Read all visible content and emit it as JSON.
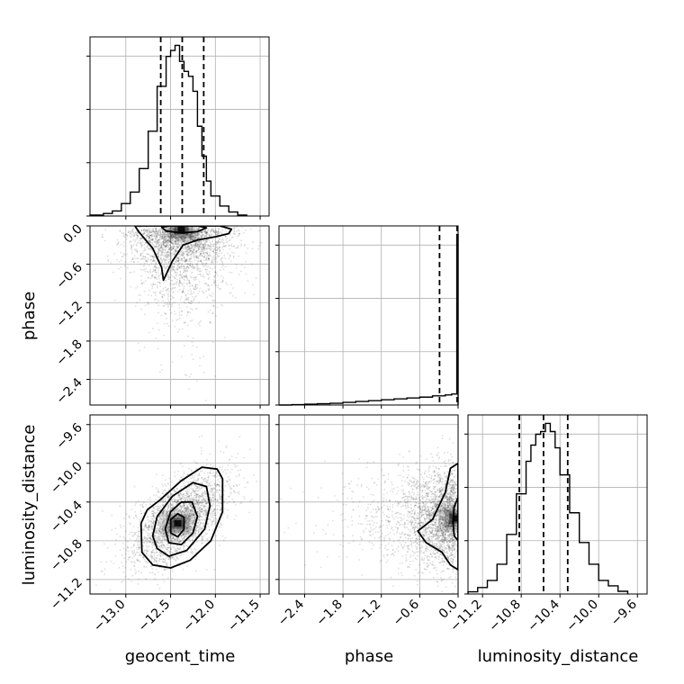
{
  "chart_data": {
    "type": "corner",
    "parameters": [
      "geocent_time",
      "phase",
      "luminosity_distance"
    ],
    "colors": {
      "line": "#000000",
      "grid": "#b0b0b0",
      "points": "#000000",
      "frame": "#000000"
    },
    "grid": true,
    "ranges": {
      "geocent_time": [
        -13.4,
        -11.4
      ],
      "phase": [
        -2.8,
        0.0
      ],
      "luminosity_distance": [
        -11.35,
        -9.5
      ]
    },
    "ticks": {
      "geocent_time": {
        "values": [
          -13.0,
          -12.5,
          -12.0,
          -11.5
        ],
        "labels": [
          "−13.0",
          "−12.5",
          "−12.0",
          "−11.5"
        ]
      },
      "phase": {
        "values": [
          -2.4,
          -1.8,
          -1.2,
          -0.6,
          0.0
        ],
        "labels": [
          "−2.4",
          "−1.8",
          "−1.2",
          "−0.6",
          "0.0"
        ]
      },
      "luminosity_distance": {
        "values": [
          -11.2,
          -10.8,
          -10.4,
          -10.0,
          -9.6
        ],
        "labels": [
          "−11.2",
          "−10.8",
          "−10.4",
          "−10.0",
          "−9.6"
        ]
      }
    },
    "quantiles": {
      "geocent_time": [
        -12.61,
        -12.37,
        -12.13
      ],
      "phase": [
        -0.29,
        -0.01,
        0.0
      ],
      "luminosity_distance": [
        -10.82,
        -10.57,
        -10.32
      ]
    },
    "histograms": {
      "geocent_time": {
        "bin_edges": [
          -13.4,
          -13.25,
          -13.15,
          -13.05,
          -12.95,
          -12.85,
          -12.75,
          -12.65,
          -12.55,
          -12.5,
          -12.45,
          -12.4,
          -12.35,
          -12.3,
          -12.25,
          -12.2,
          -12.15,
          -12.1,
          -12.05,
          -11.95,
          -11.85,
          -11.75,
          -11.65
        ],
        "counts": [
          2,
          5,
          10,
          25,
          48,
          95,
          170,
          260,
          320,
          332,
          342,
          310,
          290,
          280,
          250,
          180,
          120,
          70,
          40,
          20,
          8,
          2
        ]
      },
      "phase": {
        "bin_edges": [
          -2.8,
          -2.6,
          -2.4,
          -2.2,
          -2.0,
          -1.8,
          -1.6,
          -1.4,
          -1.2,
          -1.0,
          -0.8,
          -0.6,
          -0.4,
          -0.2,
          -0.1,
          -0.02,
          0.0
        ],
        "counts": [
          0,
          1,
          2,
          3,
          4,
          6,
          8,
          10,
          12,
          14,
          16,
          18,
          21,
          23,
          25,
          390
        ]
      },
      "luminosity_distance": {
        "bin_edges": [
          -11.35,
          -11.25,
          -11.15,
          -11.05,
          -10.95,
          -10.85,
          -10.75,
          -10.7,
          -10.65,
          -10.6,
          -10.55,
          -10.5,
          -10.45,
          -10.4,
          -10.3,
          -10.2,
          -10.1,
          -10.0,
          -9.9,
          -9.8,
          -9.7
        ],
        "counts": [
          4,
          12,
          25,
          55,
          110,
          185,
          245,
          275,
          295,
          300,
          315,
          300,
          270,
          220,
          150,
          95,
          55,
          25,
          15,
          5
        ]
      }
    },
    "scatter_2d": {
      "geocent_time_vs_phase": {
        "x": "geocent_time",
        "y": "phase",
        "x_mean": -12.4,
        "x_sd": 0.28,
        "y_mode": 0.0,
        "y_tail_scale": 0.75,
        "n_points": 2600,
        "peak_x": -12.38,
        "peak_y": -0.05,
        "contour_outer": [
          [
            -12.9,
            0.0
          ],
          [
            -12.85,
            -0.1
          ],
          [
            -12.7,
            -0.35
          ],
          [
            -12.6,
            -0.65
          ],
          [
            -12.58,
            -0.85
          ],
          [
            -12.48,
            -0.55
          ],
          [
            -12.36,
            -0.3
          ],
          [
            -12.2,
            -0.22
          ],
          [
            -12.0,
            -0.17
          ],
          [
            -11.85,
            -0.12
          ],
          [
            -11.82,
            -0.05
          ],
          [
            -11.95,
            0.0
          ]
        ],
        "contour_inner": [
          [
            -12.6,
            -0.02
          ],
          [
            -12.55,
            -0.08
          ],
          [
            -12.38,
            -0.11
          ],
          [
            -12.2,
            -0.09
          ],
          [
            -12.1,
            -0.03
          ],
          [
            -12.2,
            0.0
          ],
          [
            -12.5,
            0.0
          ]
        ]
      },
      "geocent_time_vs_luminosity_distance": {
        "x": "geocent_time",
        "y": "luminosity_distance",
        "x_mean": -12.4,
        "x_sd": 0.28,
        "y_mean": -10.57,
        "y_sd": 0.25,
        "corr": 0.6,
        "n_points": 2600,
        "peak_x": -12.42,
        "peak_y": -10.62,
        "contours": [
          [
            [
              -12.83,
              -10.62
            ],
            [
              -12.82,
              -10.92
            ],
            [
              -12.7,
              -11.05
            ],
            [
              -12.5,
              -11.08
            ],
            [
              -12.28,
              -11.0
            ],
            [
              -12.05,
              -10.8
            ],
            [
              -11.92,
              -10.5
            ],
            [
              -11.92,
              -10.16
            ],
            [
              -11.98,
              -10.06
            ],
            [
              -12.15,
              -10.04
            ],
            [
              -12.38,
              -10.18
            ],
            [
              -12.62,
              -10.38
            ],
            [
              -12.76,
              -10.48
            ]
          ],
          [
            [
              -12.65,
              -10.88
            ],
            [
              -12.52,
              -10.96
            ],
            [
              -12.32,
              -10.9
            ],
            [
              -12.12,
              -10.68
            ],
            [
              -12.06,
              -10.44
            ],
            [
              -12.1,
              -10.24
            ],
            [
              -12.25,
              -10.2
            ],
            [
              -12.48,
              -10.34
            ],
            [
              -12.65,
              -10.55
            ],
            [
              -12.7,
              -10.75
            ]
          ],
          [
            [
              -12.52,
              -10.82
            ],
            [
              -12.38,
              -10.84
            ],
            [
              -12.25,
              -10.72
            ],
            [
              -12.2,
              -10.55
            ],
            [
              -12.26,
              -10.4
            ],
            [
              -12.38,
              -10.4
            ],
            [
              -12.5,
              -10.5
            ],
            [
              -12.56,
              -10.68
            ]
          ],
          [
            [
              -12.5,
              -10.72
            ],
            [
              -12.42,
              -10.76
            ],
            [
              -12.35,
              -10.68
            ],
            [
              -12.35,
              -10.56
            ],
            [
              -12.42,
              -10.52
            ],
            [
              -12.5,
              -10.58
            ]
          ]
        ]
      },
      "phase_vs_luminosity_distance": {
        "x": "phase",
        "y": "luminosity_distance",
        "x_mode": 0.0,
        "x_tail_scale": 0.75,
        "y_mean": -10.57,
        "y_sd": 0.25,
        "n_points": 2600,
        "peak_x": -0.03,
        "peak_y": -10.57,
        "contour_outer": [
          [
            0.0,
            -10.0
          ],
          [
            -0.12,
            -10.05
          ],
          [
            -0.2,
            -10.3
          ],
          [
            -0.4,
            -10.58
          ],
          [
            -0.63,
            -10.7
          ],
          [
            -0.5,
            -10.82
          ],
          [
            -0.25,
            -10.92
          ],
          [
            -0.12,
            -11.05
          ],
          [
            0.0,
            -11.1
          ]
        ],
        "contour_inner": [
          [
            0.0,
            -10.35
          ],
          [
            -0.06,
            -10.45
          ],
          [
            -0.08,
            -10.6
          ],
          [
            -0.06,
            -10.75
          ],
          [
            0.0,
            -10.8
          ]
        ]
      }
    }
  }
}
